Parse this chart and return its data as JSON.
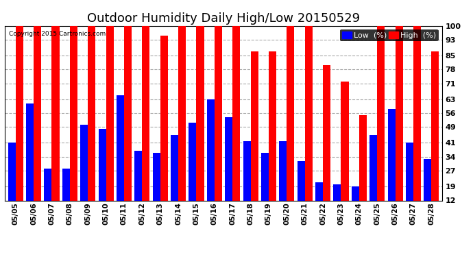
{
  "title": "Outdoor Humidity Daily High/Low 20150529",
  "copyright": "Copyright 2015 Cartronics.com",
  "dates": [
    "05/05",
    "05/06",
    "05/07",
    "05/08",
    "05/09",
    "05/10",
    "05/11",
    "05/12",
    "05/13",
    "05/14",
    "05/15",
    "05/16",
    "05/17",
    "05/18",
    "05/19",
    "05/20",
    "05/21",
    "05/22",
    "05/23",
    "05/24",
    "05/25",
    "05/26",
    "05/27",
    "05/28"
  ],
  "high": [
    100,
    100,
    100,
    100,
    100,
    100,
    100,
    100,
    95,
    100,
    100,
    100,
    100,
    87,
    87,
    100,
    100,
    80,
    72,
    55,
    100,
    100,
    100,
    87
  ],
  "low": [
    41,
    61,
    28,
    28,
    50,
    48,
    65,
    37,
    36,
    45,
    51,
    63,
    54,
    42,
    36,
    42,
    32,
    21,
    20,
    19,
    45,
    58,
    41,
    33
  ],
  "high_color": "#ff0000",
  "low_color": "#0000ff",
  "yticks": [
    12,
    19,
    27,
    34,
    41,
    49,
    56,
    63,
    71,
    78,
    85,
    93,
    100
  ],
  "ymin": 12,
  "ymax": 100,
  "bar_width": 0.42,
  "title_fontsize": 13,
  "tick_fontsize": 7.5,
  "legend_fontsize": 8,
  "plot_bg": "#ffffff",
  "fig_bg": "#ffffff",
  "grid_color": "#aaaaaa",
  "spine_color": "#000000"
}
